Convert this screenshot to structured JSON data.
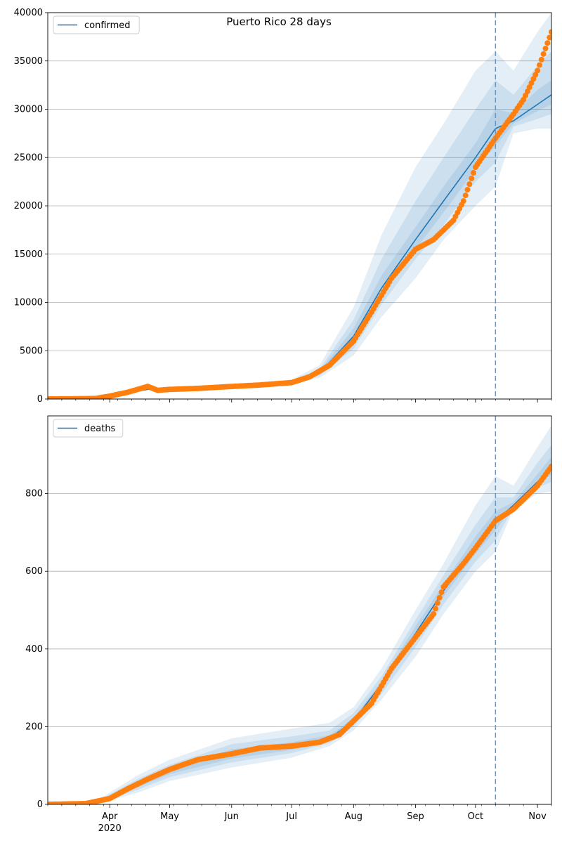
{
  "figure": {
    "title": "Puerto Rico 28 days"
  },
  "colors": {
    "model": "#1f77b4",
    "observed": "#ff7f0e",
    "band": "#1f77b4",
    "grid": "#b0b0b0",
    "forecast_line": "#5b9bd5"
  },
  "x_axis": {
    "start": "2020-03-01",
    "end": "2020-11-08",
    "ticks": [
      {
        "date": "2020-04-01",
        "label": "Apr",
        "sublabel": "2020"
      },
      {
        "date": "2020-05-01",
        "label": "May",
        "sublabel": ""
      },
      {
        "date": "2020-06-01",
        "label": "Jun",
        "sublabel": ""
      },
      {
        "date": "2020-07-01",
        "label": "Jul",
        "sublabel": ""
      },
      {
        "date": "2020-08-01",
        "label": "Aug",
        "sublabel": ""
      },
      {
        "date": "2020-09-01",
        "label": "Sep",
        "sublabel": ""
      },
      {
        "date": "2020-10-01",
        "label": "Oct",
        "sublabel": ""
      },
      {
        "date": "2020-11-01",
        "label": "Nov",
        "sublabel": ""
      }
    ],
    "forecast_start": "2020-10-11"
  },
  "chart_data": [
    {
      "type": "line",
      "legend": "confirmed",
      "legend_position": "upper-left",
      "grid": "horizontal",
      "ylim": [
        0,
        40000
      ],
      "yticks": [
        0,
        5000,
        10000,
        15000,
        20000,
        25000,
        30000,
        35000,
        40000
      ],
      "model_median": {
        "x": [
          "2020-03-01",
          "2020-03-15",
          "2020-04-01",
          "2020-04-20",
          "2020-05-01",
          "2020-06-01",
          "2020-07-01",
          "2020-07-15",
          "2020-08-01",
          "2020-08-15",
          "2020-09-01",
          "2020-09-15",
          "2020-10-01",
          "2020-10-11",
          "2020-10-20",
          "2020-11-01",
          "2020-11-08"
        ],
        "y": [
          0,
          50,
          300,
          1000,
          1050,
          1300,
          1700,
          2700,
          6500,
          11500,
          16500,
          20500,
          25000,
          28000,
          28800,
          30500,
          31500
        ]
      },
      "bands": [
        {
          "x": [
            "2020-07-01",
            "2020-07-15",
            "2020-08-01",
            "2020-08-15",
            "2020-09-01",
            "2020-09-15",
            "2020-10-01",
            "2020-10-11",
            "2020-10-20",
            "2020-11-01",
            "2020-11-08"
          ],
          "lo": [
            1500,
            2200,
            4500,
            8500,
            12500,
            16500,
            20000,
            22000,
            27500,
            28000,
            28000
          ],
          "hi": [
            2000,
            3500,
            9500,
            17000,
            24000,
            28500,
            34000,
            36000,
            34000,
            38000,
            40000
          ]
        },
        {
          "x": [
            "2020-07-01",
            "2020-07-15",
            "2020-08-01",
            "2020-08-15",
            "2020-09-01",
            "2020-09-15",
            "2020-10-01",
            "2020-10-11",
            "2020-10-20",
            "2020-11-01",
            "2020-11-08"
          ],
          "lo": [
            1600,
            2400,
            5200,
            9800,
            14500,
            18000,
            22500,
            24500,
            28200,
            29000,
            29500
          ],
          "hi": [
            1900,
            3100,
            8200,
            14500,
            20500,
            25000,
            30000,
            33000,
            31500,
            34500,
            36000
          ]
        },
        {
          "x": [
            "2020-07-01",
            "2020-07-15",
            "2020-08-01",
            "2020-08-15",
            "2020-09-01",
            "2020-09-15",
            "2020-10-01",
            "2020-10-11",
            "2020-10-20",
            "2020-11-01",
            "2020-11-08"
          ],
          "lo": [
            1650,
            2550,
            5800,
            10800,
            15500,
            19300,
            23800,
            26200,
            28500,
            29800,
            30500
          ],
          "hi": [
            1800,
            2900,
            7300,
            12800,
            17800,
            22000,
            26500,
            30000,
            29600,
            32000,
            33000
          ]
        }
      ],
      "observed": {
        "x": [
          "2020-03-01",
          "2020-03-25",
          "2020-04-01",
          "2020-04-10",
          "2020-04-20",
          "2020-04-25",
          "2020-05-01",
          "2020-05-15",
          "2020-06-01",
          "2020-06-15",
          "2020-07-01",
          "2020-07-10",
          "2020-07-20",
          "2020-08-01",
          "2020-08-10",
          "2020-08-20",
          "2020-09-01",
          "2020-09-10",
          "2020-09-20",
          "2020-09-25",
          "2020-10-01",
          "2020-10-11",
          "2020-10-20",
          "2020-10-25",
          "2020-11-01",
          "2020-11-08"
        ],
        "y": [
          0,
          50,
          300,
          700,
          1300,
          900,
          1000,
          1100,
          1300,
          1450,
          1700,
          2300,
          3500,
          6000,
          9000,
          12500,
          15500,
          16500,
          18500,
          20500,
          24000,
          27000,
          29500,
          31000,
          34000,
          38000
        ]
      }
    },
    {
      "type": "line",
      "legend": "deaths",
      "legend_position": "upper-left",
      "grid": "horizontal",
      "ylim": [
        0,
        1000
      ],
      "yticks": [
        0,
        200,
        400,
        600,
        800
      ],
      "model_median": {
        "x": [
          "2020-03-01",
          "2020-03-25",
          "2020-04-01",
          "2020-04-15",
          "2020-05-01",
          "2020-05-15",
          "2020-06-01",
          "2020-07-01",
          "2020-07-20",
          "2020-08-01",
          "2020-08-15",
          "2020-09-01",
          "2020-09-15",
          "2020-10-01",
          "2020-10-11",
          "2020-10-20",
          "2020-11-01",
          "2020-11-08"
        ],
        "y": [
          0,
          3,
          12,
          50,
          85,
          110,
          130,
          150,
          170,
          215,
          310,
          440,
          550,
          660,
          730,
          770,
          830,
          865
        ]
      },
      "bands": [
        {
          "x": [
            "2020-03-25",
            "2020-04-15",
            "2020-05-01",
            "2020-06-01",
            "2020-07-01",
            "2020-07-20",
            "2020-08-01",
            "2020-08-15",
            "2020-09-01",
            "2020-09-15",
            "2020-10-01",
            "2020-10-11",
            "2020-10-20",
            "2020-11-01",
            "2020-11-08"
          ],
          "lo": [
            0,
            30,
            60,
            95,
            120,
            150,
            190,
            270,
            380,
            490,
            600,
            650,
            760,
            800,
            805
          ],
          "hi": [
            8,
            75,
            115,
            170,
            195,
            210,
            250,
            350,
            500,
            620,
            770,
            845,
            820,
            920,
            975
          ]
        },
        {
          "x": [
            "2020-03-25",
            "2020-04-15",
            "2020-05-01",
            "2020-06-01",
            "2020-07-01",
            "2020-07-20",
            "2020-08-01",
            "2020-08-15",
            "2020-09-01",
            "2020-09-15",
            "2020-10-01",
            "2020-10-11",
            "2020-10-20",
            "2020-11-01",
            "2020-11-08"
          ],
          "lo": [
            1,
            38,
            70,
            108,
            132,
            158,
            200,
            285,
            405,
            515,
            625,
            680,
            765,
            815,
            830
          ],
          "hi": [
            6,
            65,
            102,
            155,
            175,
            190,
            235,
            330,
            475,
            590,
            720,
            790,
            790,
            880,
            925
          ]
        },
        {
          "x": [
            "2020-03-25",
            "2020-04-15",
            "2020-05-01",
            "2020-06-01",
            "2020-07-01",
            "2020-07-20",
            "2020-08-01",
            "2020-08-15",
            "2020-09-01",
            "2020-09-15",
            "2020-10-01",
            "2020-10-11",
            "2020-10-20",
            "2020-11-01",
            "2020-11-08"
          ],
          "lo": [
            2,
            44,
            78,
            118,
            140,
            164,
            208,
            297,
            425,
            535,
            645,
            705,
            768,
            822,
            850
          ],
          "hi": [
            4,
            56,
            92,
            142,
            160,
            178,
            222,
            318,
            458,
            567,
            690,
            755,
            778,
            850,
            895
          ]
        }
      ],
      "observed": {
        "x": [
          "2020-03-01",
          "2020-03-20",
          "2020-04-01",
          "2020-04-10",
          "2020-04-20",
          "2020-05-01",
          "2020-05-15",
          "2020-06-01",
          "2020-06-15",
          "2020-07-01",
          "2020-07-15",
          "2020-07-25",
          "2020-08-01",
          "2020-08-10",
          "2020-08-20",
          "2020-09-01",
          "2020-09-10",
          "2020-09-15",
          "2020-09-25",
          "2020-10-01",
          "2020-10-11",
          "2020-10-20",
          "2020-11-01",
          "2020-11-08"
        ],
        "y": [
          0,
          2,
          15,
          40,
          65,
          90,
          115,
          130,
          145,
          150,
          160,
          180,
          215,
          260,
          350,
          430,
          490,
          560,
          620,
          660,
          730,
          760,
          820,
          870
        ]
      }
    }
  ]
}
